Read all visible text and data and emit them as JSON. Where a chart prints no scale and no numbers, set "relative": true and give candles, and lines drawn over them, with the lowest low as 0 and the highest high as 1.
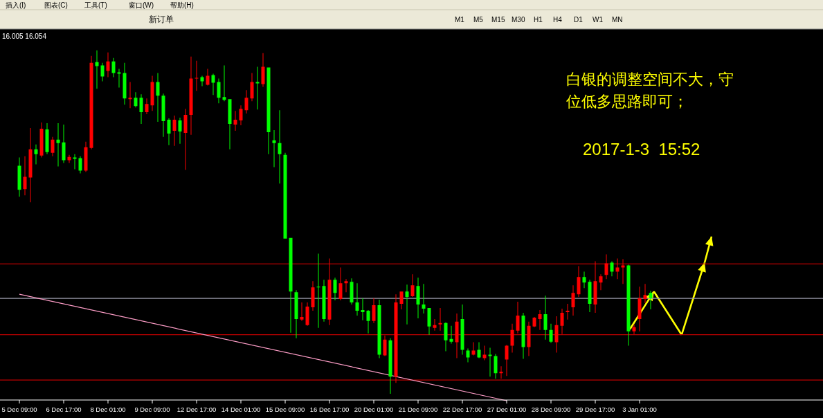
{
  "chart_data": {
    "type": "candlestick",
    "relative": true,
    "categories": [
      "5 Dec 09:00",
      null,
      null,
      null,
      null,
      null,
      null,
      null,
      "6 Dec 17:00",
      null,
      null,
      null,
      null,
      null,
      null,
      null,
      "8 Dec 01:00",
      null,
      null,
      null,
      null,
      null,
      null,
      null,
      "9 Dec 09:00",
      null,
      null,
      null,
      null,
      null,
      null,
      null,
      "12 Dec 17:00",
      null,
      null,
      null,
      null,
      null,
      null,
      null,
      "14 Dec 01:00",
      null,
      null,
      null,
      null,
      null,
      null,
      null,
      "15 Dec 09:00",
      null,
      null,
      null,
      null,
      null,
      null,
      null,
      "16 Dec 17:00",
      null,
      null,
      null,
      null,
      null,
      null,
      null,
      "20 Dec 01:00",
      null,
      null,
      null,
      null,
      null,
      null,
      null,
      "21 Dec 09:00",
      null,
      null,
      null,
      null,
      null,
      null,
      null,
      "22 Dec 17:00",
      null,
      null,
      null,
      null,
      null,
      null,
      null,
      "27 Dec 01:00",
      null,
      null,
      null,
      null,
      null,
      null,
      null,
      "28 Dec 09:00",
      null,
      null,
      null,
      null,
      null,
      null,
      null,
      "29 Dec 17:00",
      null,
      null,
      null,
      null,
      null,
      null,
      null,
      "3 Jan 01:00",
      null,
      null
    ],
    "ohlc": [
      [
        0.664,
        0.688,
        0.574,
        0.594
      ],
      [
        0.596,
        0.692,
        0.578,
        0.632
      ],
      [
        0.63,
        0.774,
        0.558,
        0.712
      ],
      [
        0.712,
        0.726,
        0.668,
        0.698
      ],
      [
        0.694,
        0.79,
        0.688,
        0.772
      ],
      [
        0.77,
        0.788,
        0.698,
        0.704
      ],
      [
        0.702,
        0.748,
        0.692,
        0.74
      ],
      [
        0.74,
        0.788,
        0.662,
        0.73
      ],
      [
        0.732,
        0.784,
        0.672,
        0.68
      ],
      [
        0.68,
        0.696,
        0.672,
        0.69
      ],
      [
        0.688,
        0.698,
        0.654,
        0.684
      ],
      [
        0.686,
        0.692,
        0.642,
        0.65
      ],
      [
        0.65,
        0.734,
        0.646,
        0.718
      ],
      [
        0.716,
        0.984,
        0.712,
        0.964
      ],
      [
        0.966,
        1.0,
        0.888,
        0.954
      ],
      [
        0.956,
        0.964,
        0.91,
        0.924
      ],
      [
        0.94,
        0.994,
        0.922,
        0.968
      ],
      [
        0.968,
        0.978,
        0.922,
        0.934
      ],
      [
        0.936,
        0.946,
        0.892,
        0.932
      ],
      [
        0.934,
        0.964,
        0.842,
        0.86
      ],
      [
        0.858,
        0.908,
        0.832,
        0.862
      ],
      [
        0.862,
        0.878,
        0.834,
        0.838
      ],
      [
        0.862,
        0.872,
        0.786,
        0.82
      ],
      [
        0.82,
        0.86,
        0.814,
        0.844
      ],
      [
        0.84,
        0.926,
        0.824,
        0.908
      ],
      [
        0.908,
        0.934,
        0.792,
        0.868
      ],
      [
        0.868,
        0.874,
        0.748,
        0.794
      ],
      [
        0.798,
        0.802,
        0.724,
        0.758
      ],
      [
        0.766,
        0.81,
        0.722,
        0.798
      ],
      [
        0.796,
        0.804,
        0.728,
        0.764
      ],
      [
        0.76,
        0.83,
        0.652,
        0.812
      ],
      [
        0.812,
        0.982,
        0.754,
        0.918
      ],
      [
        0.918,
        0.97,
        0.882,
        0.92
      ],
      [
        0.922,
        0.926,
        0.896,
        0.91
      ],
      [
        0.9,
        0.946,
        0.898,
        0.926
      ],
      [
        0.928,
        0.932,
        0.87,
        0.906
      ],
      [
        0.908,
        0.918,
        0.846,
        0.862
      ],
      [
        0.864,
        0.956,
        0.852,
        0.856
      ],
      [
        0.858,
        0.858,
        0.712,
        0.786
      ],
      [
        0.784,
        0.824,
        0.766,
        0.798
      ],
      [
        0.796,
        0.84,
        0.782,
        0.83
      ],
      [
        0.826,
        0.884,
        0.816,
        0.862
      ],
      [
        0.86,
        0.934,
        0.852,
        0.908
      ],
      [
        0.908,
        0.952,
        0.828,
        0.904
      ],
      [
        0.902,
        0.992,
        0.894,
        0.952
      ],
      [
        0.95,
        0.95,
        0.698,
        0.762
      ],
      [
        0.738,
        0.768,
        0.66,
        0.73
      ],
      [
        0.73,
        0.826,
        0.612,
        0.698
      ],
      [
        0.696,
        0.702,
        0.452,
        0.452
      ],
      [
        0.454,
        0.454,
        0.178,
        0.298
      ],
      [
        0.296,
        0.302,
        0.162,
        0.218
      ],
      [
        0.216,
        0.266,
        0.212,
        0.224
      ],
      [
        0.2,
        0.266,
        0.198,
        0.254
      ],
      [
        0.252,
        0.328,
        0.242,
        0.31
      ],
      [
        0.312,
        0.408,
        0.192,
        0.31
      ],
      [
        0.314,
        0.332,
        0.21,
        0.218
      ],
      [
        0.216,
        0.394,
        0.2,
        0.332
      ],
      [
        0.332,
        0.338,
        0.272,
        0.294
      ],
      [
        0.276,
        0.368,
        0.272,
        0.322
      ],
      [
        0.322,
        0.334,
        0.296,
        0.328
      ],
      [
        0.326,
        0.336,
        0.26,
        0.266
      ],
      [
        0.266,
        0.322,
        0.228,
        0.242
      ],
      [
        0.244,
        0.278,
        0.214,
        0.238
      ],
      [
        0.242,
        0.244,
        0.176,
        0.212
      ],
      [
        0.212,
        0.278,
        0.206,
        0.258
      ],
      [
        0.258,
        0.274,
        0.104,
        0.114
      ],
      [
        0.112,
        0.17,
        0.11,
        0.158
      ],
      [
        0.156,
        0.162,
        0,
        0.05
      ],
      [
        0.05,
        0.29,
        0.032,
        0.266
      ],
      [
        0.262,
        0.298,
        0.246,
        0.298
      ],
      [
        0.298,
        0.318,
        0.202,
        0.282
      ],
      [
        0.284,
        0.348,
        0.282,
        0.316
      ],
      [
        0.314,
        0.338,
        0.22,
        0.26
      ],
      [
        0.26,
        0.32,
        0.234,
        0.248
      ],
      [
        0.25,
        0.25,
        0.172,
        0.196
      ],
      [
        0.192,
        0.218,
        0.184,
        0.2
      ],
      [
        0.202,
        0.25,
        0.184,
        0.206
      ],
      [
        0.206,
        0.208,
        0.124,
        0.156
      ],
      [
        0.16,
        0.198,
        0.146,
        0.152
      ],
      [
        0.15,
        0.234,
        0.104,
        0.21
      ],
      [
        0.218,
        0.26,
        0.114,
        0.128
      ],
      [
        0.126,
        0.132,
        0.092,
        0.106
      ],
      [
        0.114,
        0.15,
        0.112,
        0.126
      ],
      [
        0.128,
        0.15,
        0.104,
        0.106
      ],
      [
        0.104,
        0.14,
        0.098,
        0.114
      ],
      [
        0.114,
        0.134,
        0.05,
        0.11
      ],
      [
        0.11,
        0.116,
        0.044,
        0.06
      ],
      [
        0.06,
        0.08,
        0.044,
        0.064
      ],
      [
        0.1,
        0.142,
        0.052,
        0.14
      ],
      [
        0.14,
        0.204,
        0.12,
        0.186
      ],
      [
        0.184,
        0.268,
        0.176,
        0.228
      ],
      [
        0.228,
        0.236,
        0.102,
        0.136
      ],
      [
        0.136,
        0.21,
        0.11,
        0.198
      ],
      [
        0.196,
        0.224,
        0.194,
        0.222
      ],
      [
        0.218,
        0.244,
        0.186,
        0.232
      ],
      [
        0.232,
        0.286,
        0.158,
        0.186
      ],
      [
        0.186,
        0.204,
        0.148,
        0.152
      ],
      [
        0.15,
        0.226,
        0.12,
        0.2
      ],
      [
        0.198,
        0.248,
        0.174,
        0.236
      ],
      [
        0.238,
        0.262,
        0.216,
        0.242
      ],
      [
        0.252,
        0.316,
        0.228,
        0.294
      ],
      [
        0.29,
        0.372,
        0.282,
        0.34
      ],
      [
        0.34,
        0.356,
        0.308,
        0.324
      ],
      [
        0.326,
        0.332,
        0.238,
        0.262
      ],
      [
        0.26,
        0.386,
        0.236,
        0.328
      ],
      [
        0.324,
        0.348,
        0.302,
        0.342
      ],
      [
        0.346,
        0.406,
        0.334,
        0.38
      ],
      [
        0.382,
        0.386,
        0.342,
        0.356
      ],
      [
        0.356,
        0.394,
        0.334,
        0.368
      ],
      [
        0.368,
        0.392,
        0.32,
        0.374
      ],
      [
        0.374,
        0.376,
        0.14,
        0.182
      ],
      [
        0.182,
        0.202,
        0.174,
        0.194
      ],
      [
        0.218,
        0.312,
        0.182,
        0.278
      ],
      [
        0.276,
        0.32,
        0.264,
        0.288
      ],
      [
        0.294,
        0.3,
        0.246,
        0.278
      ]
    ],
    "colors": [
      "#00ff00",
      "#ff0000",
      "#ff0000",
      "#00ff00",
      "#ff0000",
      "#00ff00",
      "#ff0000",
      "#00ff00",
      "#00ff00",
      "#ff0000",
      "#00ff00",
      "#00ff00",
      "#ff0000",
      "#ff0000",
      "#00ff00",
      "#00ff00",
      "#ff0000",
      "#00ff00",
      "#00ff00",
      "#00ff00",
      "#ff0000",
      "#00ff00",
      "#00ff00",
      "#ff0000",
      "#ff0000",
      "#00ff00",
      "#00ff00",
      "#00ff00",
      "#ff0000",
      "#00ff00",
      "#ff0000",
      "#ff0000",
      "#ff0000",
      "#00ff00",
      "#ff0000",
      "#00ff00",
      "#00ff00",
      "#00ff00",
      "#00ff00",
      "#ff0000",
      "#ff0000",
      "#ff0000",
      "#ff0000",
      "#00ff00",
      "#ff0000",
      "#00ff00",
      "#00ff00",
      "#00ff00",
      "#00ff00",
      "#00ff00",
      "#00ff00",
      "#ff0000",
      "#ff0000",
      "#ff0000",
      "#00ff00",
      "#00ff00",
      "#ff0000",
      "#00ff00",
      "#ff0000",
      "#ff0000",
      "#00ff00",
      "#00ff00",
      "#00ff00",
      "#00ff00",
      "#ff0000",
      "#00ff00",
      "#ff0000",
      "#00ff00",
      "#ff0000",
      "#ff0000",
      "#00ff00",
      "#ff0000",
      "#00ff00",
      "#00ff00",
      "#00ff00",
      "#ff0000",
      "#ff0000",
      "#00ff00",
      "#00ff00",
      "#ff0000",
      "#00ff00",
      "#00ff00",
      "#ff0000",
      "#00ff00",
      "#ff0000",
      "#00ff00",
      "#00ff00",
      "#ff0000",
      "#ff0000",
      "#ff0000",
      "#ff0000",
      "#00ff00",
      "#ff0000",
      "#ff0000",
      "#ff0000",
      "#00ff00",
      "#00ff00",
      "#ff0000",
      "#ff0000",
      "#ff0000",
      "#ff0000",
      "#ff0000",
      "#00ff00",
      "#00ff00",
      "#ff0000",
      "#ff0000",
      "#ff0000",
      "#00ff00",
      "#ff0000",
      "#ff0000",
      "#00ff00",
      "#ff0000",
      "#ff0000",
      "#ff0000",
      "#00ff00"
    ],
    "series": [
      {
        "type": "line",
        "x": [
          "5 Dec 09:00",
          "27 Dec 01:00"
        ],
        "values": [
          0.29,
          -0.02
        ],
        "color": "#ff9ec8"
      }
    ],
    "ref_lines": [
      {
        "axis": "y",
        "value": 0.378,
        "color": "#c00000"
      },
      {
        "axis": "y",
        "value": 0.278,
        "color": "#9a9aa8"
      },
      {
        "axis": "y",
        "value": 0.172,
        "color": "#c00000"
      },
      {
        "axis": "y",
        "value": 0.04,
        "color": "#c00000"
      }
    ],
    "annotations": [
      "白银的调整空间不大，守位低多思路即可；",
      "2017-1-3  15:52",
      "16.005 16.054",
      "插入(I)",
      "图表(C)",
      "工具(T)",
      "窗口(W)",
      "帮助(H)",
      "新订单",
      "M1",
      "M5",
      "M15",
      "M30",
      "H1",
      "H4",
      "D1",
      "W1",
      "MN"
    ]
  }
}
